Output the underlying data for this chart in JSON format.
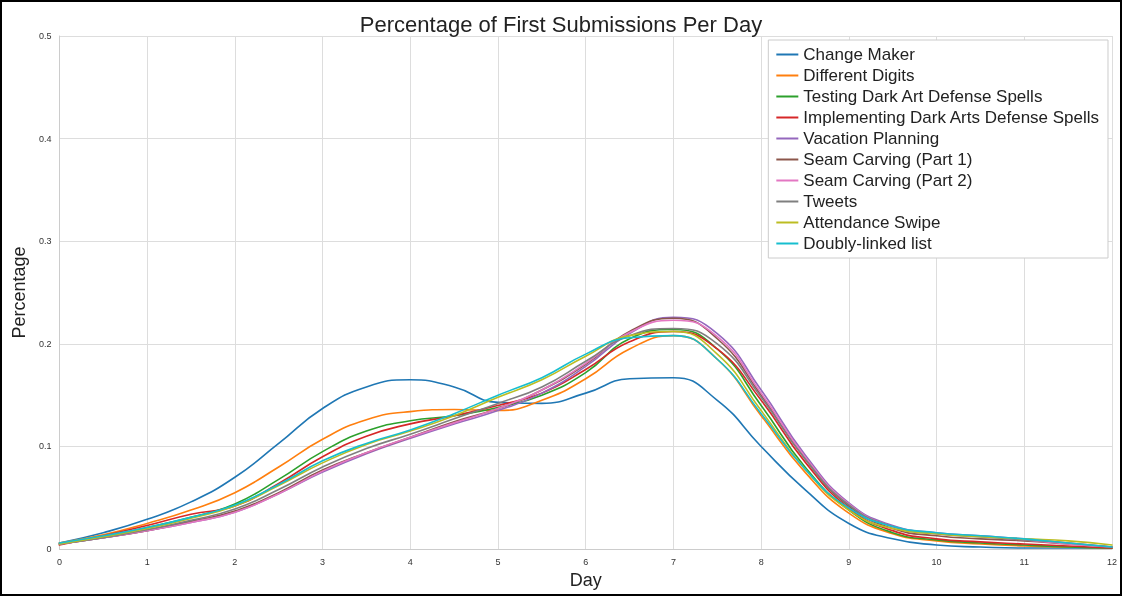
{
  "chart_data": {
    "type": "line",
    "title": "Percentage of First Submissions Per Day",
    "xlabel": "Day",
    "ylabel": "Percentage",
    "x": [
      0,
      0.5,
      1,
      1.5,
      2,
      2.5,
      3,
      3.5,
      4,
      4.5,
      5,
      5.5,
      6,
      6.5,
      7,
      7.5,
      8,
      8.5,
      9,
      9.5,
      10,
      10.5,
      11,
      11.5,
      12
    ],
    "xlim": [
      0,
      12
    ],
    "xticks": [
      0,
      1,
      2,
      3,
      4,
      5,
      6,
      7,
      8,
      9,
      10,
      11,
      12
    ],
    "ylim": [
      0,
      0.5
    ],
    "yticks": [
      0,
      0.1,
      0.2,
      0.3,
      0.4,
      0.5
    ],
    "grid": true,
    "legend": "top right",
    "marker": "none",
    "line_style": "solid",
    "series": [
      {
        "name": "Change Maker",
        "color": "#1f77b4",
        "values": [
          0.006,
          0.016,
          0.029,
          0.046,
          0.07,
          0.103,
          0.137,
          0.158,
          0.165,
          0.158,
          0.143,
          0.142,
          0.152,
          0.166,
          0.167,
          0.145,
          0.1,
          0.058,
          0.025,
          0.01,
          0.004,
          0.002,
          0.001,
          0.001,
          0.001
        ]
      },
      {
        "name": "Different Digits",
        "color": "#ff7f0e",
        "values": [
          0.006,
          0.014,
          0.025,
          0.038,
          0.055,
          0.08,
          0.107,
          0.126,
          0.134,
          0.136,
          0.135,
          0.145,
          0.166,
          0.195,
          0.208,
          0.185,
          0.13,
          0.075,
          0.035,
          0.015,
          0.008,
          0.005,
          0.003,
          0.002,
          0.001
        ]
      },
      {
        "name": "Testing Dark Art Defense Spells",
        "color": "#2ca02c",
        "values": [
          0.005,
          0.012,
          0.021,
          0.031,
          0.044,
          0.068,
          0.095,
          0.115,
          0.125,
          0.13,
          0.138,
          0.15,
          0.172,
          0.205,
          0.214,
          0.195,
          0.14,
          0.08,
          0.038,
          0.016,
          0.009,
          0.006,
          0.004,
          0.002,
          0.001
        ]
      },
      {
        "name": "Implementing Dark Arts Defense Spells",
        "color": "#d62728",
        "values": [
          0.004,
          0.013,
          0.023,
          0.034,
          0.042,
          0.064,
          0.09,
          0.11,
          0.122,
          0.13,
          0.14,
          0.152,
          0.175,
          0.202,
          0.212,
          0.195,
          0.145,
          0.085,
          0.04,
          0.018,
          0.01,
          0.007,
          0.005,
          0.003,
          0.001
        ]
      },
      {
        "name": "Vacation Planning",
        "color": "#9467bd",
        "values": [
          0.005,
          0.011,
          0.018,
          0.026,
          0.036,
          0.054,
          0.075,
          0.093,
          0.108,
          0.122,
          0.135,
          0.152,
          0.178,
          0.21,
          0.226,
          0.21,
          0.155,
          0.092,
          0.045,
          0.023,
          0.016,
          0.013,
          0.01,
          0.006,
          0.002
        ]
      },
      {
        "name": "Seam Carving (Part 1)",
        "color": "#8c564b",
        "values": [
          0.005,
          0.011,
          0.018,
          0.027,
          0.037,
          0.055,
          0.077,
          0.094,
          0.109,
          0.124,
          0.137,
          0.155,
          0.18,
          0.212,
          0.225,
          0.205,
          0.15,
          0.088,
          0.042,
          0.02,
          0.013,
          0.01,
          0.008,
          0.005,
          0.002
        ]
      },
      {
        "name": "Seam Carving (Part 2)",
        "color": "#e377c2",
        "values": [
          0.005,
          0.011,
          0.018,
          0.026,
          0.036,
          0.054,
          0.076,
          0.094,
          0.109,
          0.123,
          0.137,
          0.155,
          0.181,
          0.211,
          0.223,
          0.207,
          0.152,
          0.09,
          0.044,
          0.022,
          0.015,
          0.012,
          0.009,
          0.005,
          0.002
        ]
      },
      {
        "name": "Tweets",
        "color": "#7f7f7f",
        "values": [
          0.005,
          0.011,
          0.019,
          0.028,
          0.039,
          0.058,
          0.08,
          0.098,
          0.112,
          0.127,
          0.142,
          0.158,
          0.183,
          0.208,
          0.215,
          0.2,
          0.148,
          0.088,
          0.043,
          0.022,
          0.015,
          0.012,
          0.009,
          0.006,
          0.002
        ]
      },
      {
        "name": "Attendance Swipe",
        "color": "#bcbd22",
        "values": [
          0.005,
          0.012,
          0.02,
          0.03,
          0.042,
          0.062,
          0.084,
          0.102,
          0.115,
          0.13,
          0.148,
          0.165,
          0.188,
          0.208,
          0.212,
          0.19,
          0.135,
          0.078,
          0.038,
          0.02,
          0.015,
          0.012,
          0.01,
          0.008,
          0.004
        ]
      },
      {
        "name": "Doubly-linked list",
        "color": "#17becf",
        "values": [
          0.006,
          0.013,
          0.021,
          0.031,
          0.043,
          0.063,
          0.086,
          0.103,
          0.116,
          0.132,
          0.15,
          0.167,
          0.19,
          0.206,
          0.208,
          0.185,
          0.132,
          0.078,
          0.04,
          0.022,
          0.016,
          0.013,
          0.01,
          0.006,
          0.002
        ]
      }
    ]
  }
}
